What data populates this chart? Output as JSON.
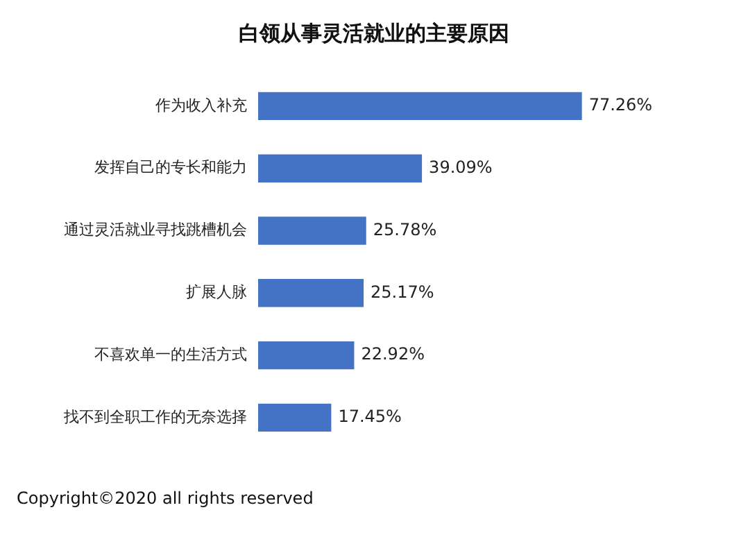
{
  "chart_data": {
    "type": "bar",
    "orientation": "horizontal",
    "title": "白领从事灵活就业的主要原因",
    "categories": [
      "作为收入补充",
      "发挥自己的专长和能力",
      "通过灵活就业寻找跳槽机会",
      "扩展人脉",
      "不喜欢单一的生活方式",
      "找不到全职工作的无奈选择"
    ],
    "values": [
      77.26,
      39.09,
      25.78,
      25.17,
      22.92,
      17.45
    ],
    "value_labels": [
      "77.26%",
      "39.09%",
      "25.78%",
      "25.17%",
      "22.92%",
      "17.45%"
    ],
    "color": "#4472c4",
    "annotations": [
      "Copyright©2020 all rights reserved"
    ]
  }
}
